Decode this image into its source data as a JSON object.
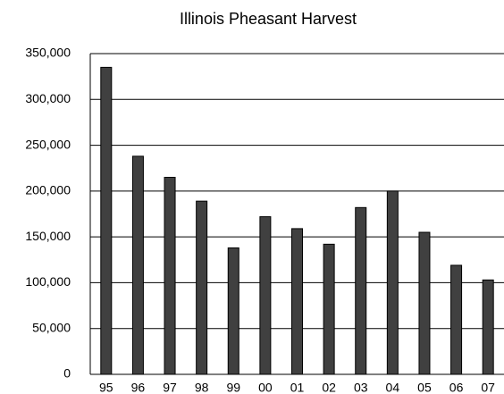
{
  "chart_data": {
    "type": "bar",
    "title": "Illinois Pheasant Harvest",
    "categories": [
      "95",
      "96",
      "97",
      "98",
      "99",
      "00",
      "01",
      "02",
      "03",
      "04",
      "05",
      "06",
      "07"
    ],
    "values": [
      335000,
      238000,
      215000,
      189000,
      138000,
      172000,
      159000,
      142000,
      182000,
      200000,
      155000,
      119000,
      103000
    ],
    "color": "#404040",
    "ylim": [
      0,
      350000
    ],
    "yticks": [
      0,
      {
        "value": 50000,
        "label": "50,000"
      },
      {
        "value": 100000,
        "label": "100,000"
      },
      {
        "value": 150000,
        "label": "150,000"
      },
      {
        "value": 200000,
        "label": "200,000"
      },
      {
        "value": 250000,
        "label": "250,000"
      },
      {
        "value": 300000,
        "label": "300,000"
      },
      {
        "value": 350000,
        "label": "350,000"
      }
    ],
    "grid": true
  }
}
